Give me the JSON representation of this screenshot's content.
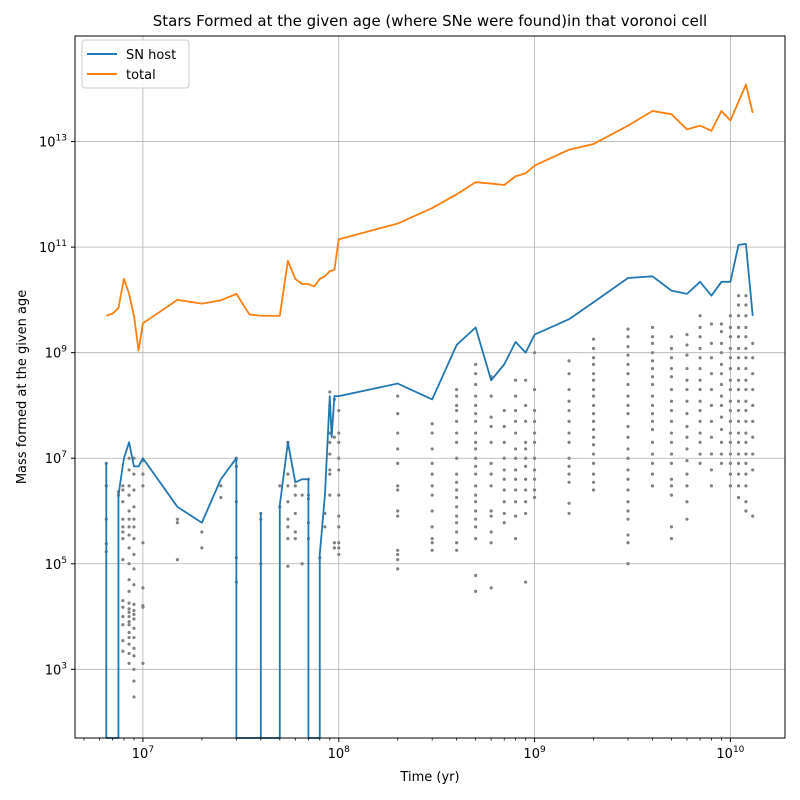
{
  "chart_data": {
    "type": "line",
    "title": "Stars Formed at the given age (where SNe were found)in that voronoi cell",
    "xlabel": "Time (yr)",
    "ylabel": "Mass formed at the given age",
    "xscale": "log",
    "yscale": "log",
    "xlim": [
      4500000,
      19000000000
    ],
    "ylim": [
      50,
      1000000000000000
    ],
    "grid": true,
    "legend_position": "top-left",
    "x_ticks": [
      {
        "value": 10000000,
        "base": "10",
        "exp": "7"
      },
      {
        "value": 100000000,
        "base": "10",
        "exp": "8"
      },
      {
        "value": 1000000000,
        "base": "10",
        "exp": "9"
      },
      {
        "value": 10000000000,
        "base": "10",
        "exp": "10"
      }
    ],
    "y_ticks": [
      {
        "value": 1000,
        "base": "10",
        "exp": "3"
      },
      {
        "value": 100000,
        "base": "10",
        "exp": "5"
      },
      {
        "value": 10000000,
        "base": "10",
        "exp": "7"
      },
      {
        "value": 1000000000,
        "base": "10",
        "exp": "9"
      },
      {
        "value": 100000000000,
        "base": "10",
        "exp": "11"
      },
      {
        "value": 10000000000000,
        "base": "10",
        "exp": "13"
      }
    ],
    "colors": {
      "sn_host": "#1f77b4",
      "total": "#ff7f0e",
      "scatter": "#808080",
      "grid": "#b0b0b0"
    },
    "series": [
      {
        "name": "SN host",
        "x": [
          6500000,
          6500000,
          6500000,
          7500000,
          7500000,
          8000000,
          8500000,
          9000000,
          9500000,
          10000000,
          15000000,
          20000000,
          25000000,
          30000000,
          30000000,
          30000000,
          40000000,
          40000000,
          40000000,
          50000000,
          50000000,
          55000000,
          60000000,
          65000000,
          70000000,
          70000000,
          70000000,
          80000000,
          80000000,
          85000000,
          90000000,
          92000000,
          95000000,
          100000000,
          200000000,
          300000000,
          400000000,
          500000000,
          600000000,
          700000000,
          800000000,
          900000000,
          1000000000,
          1500000000,
          2000000000,
          3000000000,
          4000000000,
          5000000000,
          6000000000,
          7000000000,
          8000000000,
          9000000000,
          10000000000,
          11000000000,
          12000000000,
          13000000000
        ],
        "y": [
          50,
          8000000,
          50,
          50,
          2000000,
          10000000,
          20000000,
          7000000,
          7000000,
          10000000,
          1200000,
          600000,
          4000000,
          10000000,
          50,
          50,
          50,
          900000,
          50,
          50,
          1300000,
          20000000,
          3500000,
          4000000,
          4000000,
          50,
          50,
          50,
          150000,
          2000000,
          150000000,
          25000000,
          150000000,
          150000000,
          260000000,
          130000000,
          1400000000,
          3000000000,
          300000000,
          600000000,
          1600000000,
          1000000000,
          2200000000,
          4300000000,
          9000000000,
          26000000000,
          28000000000,
          15000000000,
          13000000000,
          22000000000,
          12000000000,
          22000000000,
          22000000000,
          110000000000,
          115000000000,
          5000000000
        ]
      },
      {
        "name": "total",
        "x": [
          6500000,
          7000000,
          7500000,
          8000000,
          8500000,
          9000000,
          9500000,
          10000000,
          15000000,
          20000000,
          25000000,
          30000000,
          35000000,
          40000000,
          45000000,
          50000000,
          55000000,
          60000000,
          65000000,
          70000000,
          75000000,
          80000000,
          85000000,
          90000000,
          95000000,
          100000000,
          200000000,
          300000000,
          400000000,
          500000000,
          600000000,
          700000000,
          800000000,
          900000000,
          1000000000,
          1500000000,
          2000000000,
          3000000000,
          4000000000,
          5000000000,
          6000000000,
          7000000000,
          8000000000,
          9000000000,
          10000000000,
          12000000000,
          13000000000
        ],
        "y": [
          5000000000,
          5500000000,
          7000000000,
          25000000000,
          13000000000,
          5000000000,
          1100000000,
          3600000000,
          10000000000,
          8500000000,
          9800000000,
          13000000000,
          5300000000,
          5000000000,
          5000000000,
          5000000000,
          55000000000,
          25000000000,
          20000000000,
          20000000000,
          18000000000,
          25000000000,
          28000000000,
          35000000000,
          37000000000,
          140000000000,
          280000000000,
          550000000000,
          1000000000000,
          1700000000000,
          1600000000000,
          1500000000000,
          2200000000000,
          2500000000000,
          3500000000000,
          7000000000000,
          9000000000000,
          20000000000000,
          38000000000000,
          33000000000000,
          17000000000000,
          20000000000000,
          16000000000000,
          38000000000000,
          25000000000000,
          120000000000000,
          35000000000000
        ]
      }
    ],
    "scatter_columns": [
      {
        "x": 6500000,
        "y": [
          8000000,
          3000000,
          700000,
          240000,
          170000
        ]
      },
      {
        "x": 7500000,
        "y": [
          2300000,
          2000000
        ]
      },
      {
        "x": 7900000,
        "y": [
          3000000,
          2500000,
          1500000,
          700000,
          500000,
          400000,
          300000,
          120000,
          20000,
          15000,
          10000,
          7000,
          3500,
          2200
        ]
      },
      {
        "x": 8500000,
        "y": [
          10000000,
          6000000,
          3000000,
          2000000,
          1000000,
          700000,
          500000,
          350000,
          200000,
          100000,
          50000,
          30000,
          18000,
          14000,
          12000,
          10000,
          8000,
          7000,
          5000,
          4000,
          3000,
          2000,
          1300
        ]
      },
      {
        "x": 9000000,
        "y": [
          10000000,
          5000000,
          2500000,
          1200000,
          700000,
          500000,
          300000,
          150000,
          80000,
          40000,
          17000,
          13000,
          11000,
          9000,
          6000,
          4000,
          2500,
          1800,
          1000,
          600,
          300
        ]
      },
      {
        "x": 10000000,
        "y": [
          9000000,
          5000000,
          3000000,
          250000,
          35000,
          16000,
          15000,
          1300
        ]
      },
      {
        "x": 15000000,
        "y": [
          700000,
          600000,
          120000
        ]
      },
      {
        "x": 20000000,
        "y": [
          400000,
          200000
        ]
      },
      {
        "x": 25000000,
        "y": [
          3000000,
          1800000
        ]
      },
      {
        "x": 30000000,
        "y": [
          10000000,
          7000000,
          1500000,
          130000,
          45000
        ]
      },
      {
        "x": 40000000,
        "y": [
          900000,
          700000,
          100000
        ]
      },
      {
        "x": 50000000,
        "y": [
          3000000,
          1200000
        ]
      },
      {
        "x": 55000000,
        "y": [
          20000000,
          5000000,
          3000000,
          1500000,
          700000,
          500000,
          300000,
          90000
        ]
      },
      {
        "x": 60000000,
        "y": [
          3000000,
          2000000,
          900000,
          400000,
          300000
        ]
      },
      {
        "x": 65000000,
        "y": [
          2000000,
          100000
        ]
      },
      {
        "x": 70000000,
        "y": [
          4000000,
          2000000,
          1700000,
          600000,
          300000
        ]
      },
      {
        "x": 80000000,
        "y": [
          130000
        ]
      },
      {
        "x": 85000000,
        "y": [
          900000,
          500000
        ]
      },
      {
        "x": 90000000,
        "y": [
          180000000,
          100000000,
          30000000,
          20000000,
          12000000,
          6000000,
          5000000,
          2000000
        ]
      },
      {
        "x": 95000000,
        "y": [
          130000000,
          25000000,
          250000,
          200000
        ]
      },
      {
        "x": 100000000,
        "y": [
          80000000,
          30000000,
          20000000,
          10000000,
          6000000,
          2000000,
          800000,
          500000,
          250000,
          200000,
          150000
        ]
      },
      {
        "x": 200000000,
        "y": [
          150000000,
          70000000,
          30000000,
          15000000,
          8000000,
          3000000,
          2500000,
          1000000,
          800000,
          180000,
          150000,
          120000,
          80000
        ]
      },
      {
        "x": 300000000,
        "y": [
          45000000,
          30000000,
          15000000,
          8000000,
          5000000,
          3000000,
          2000000,
          1000000,
          500000,
          300000,
          250000,
          180000
        ]
      },
      {
        "x": 400000000,
        "y": [
          200000000,
          150000000,
          100000000,
          80000000,
          50000000,
          30000000,
          20000000,
          10000000,
          5000000,
          3500000,
          2500000,
          1800000,
          1200000,
          800000,
          600000,
          400000,
          250000,
          180000
        ]
      },
      {
        "x": 500000000,
        "y": [
          600000000,
          400000000,
          250000000,
          150000000,
          100000000,
          70000000,
          50000000,
          30000000,
          20000000,
          15000000,
          10000000,
          7000000,
          5000000,
          3000000,
          2000000,
          1500000,
          1000000,
          700000,
          500000,
          300000,
          60000,
          30000
        ]
      },
      {
        "x": 600000000,
        "y": [
          350000000,
          150000000,
          60000000,
          40000000,
          20000000,
          8000000,
          5000000,
          3000000,
          1000000,
          800000,
          400000,
          250000,
          35000
        ]
      },
      {
        "x": 700000000,
        "y": [
          80000000,
          40000000,
          20000000,
          10000000,
          6000000,
          4000000,
          2500000,
          1500000,
          900000,
          600000
        ]
      },
      {
        "x": 800000000,
        "y": [
          300000000,
          150000000,
          80000000,
          50000000,
          30000000,
          15000000,
          10000000,
          6000000,
          4000000,
          2500000,
          1500000,
          800000,
          300000
        ]
      },
      {
        "x": 900000000,
        "y": [
          300000000,
          100000000,
          50000000,
          20000000,
          15000000,
          10000000,
          7000000,
          4000000,
          2500000,
          1500000,
          900000,
          45000
        ]
      },
      {
        "x": 1000000000,
        "y": [
          1000000000,
          200000000,
          80000000,
          50000000,
          30000000,
          20000000,
          10000000,
          6000000,
          4000000,
          2500000,
          1800000
        ]
      },
      {
        "x": 1500000000,
        "y": [
          700000000,
          400000000,
          200000000,
          120000000,
          80000000,
          50000000,
          30000000,
          20000000,
          10000000,
          7000000,
          5000000,
          3500000,
          1400000,
          900000
        ]
      },
      {
        "x": 2000000000,
        "y": [
          1800000000,
          1200000000,
          800000000,
          600000000,
          400000000,
          300000000,
          200000000,
          150000000,
          100000000,
          70000000,
          50000000,
          35000000,
          25000000,
          18000000,
          12000000,
          8000000,
          5000000,
          3500000,
          2500000
        ]
      },
      {
        "x": 3000000000,
        "y": [
          2800000000,
          2000000000,
          1300000000,
          900000000,
          600000000,
          400000000,
          250000000,
          150000000,
          100000000,
          70000000,
          40000000,
          25000000,
          15000000,
          10000000,
          6000000,
          4000000,
          2500000,
          1500000,
          1000000,
          700000,
          350000,
          250000,
          100000
        ]
      },
      {
        "x": 4000000000,
        "y": [
          3000000000,
          2000000000,
          1500000000,
          1000000000,
          700000000,
          500000000,
          350000000,
          250000000,
          150000000,
          100000000,
          70000000,
          50000000,
          35000000,
          20000000,
          12000000,
          8000000,
          5000000,
          3000000
        ]
      },
      {
        "x": 5000000000,
        "y": [
          2000000000,
          1200000000,
          800000000,
          500000000,
          350000000,
          200000000,
          120000000,
          80000000,
          50000000,
          30000000,
          20000000,
          12000000,
          8000000,
          4000000,
          3000000,
          2000000,
          500000,
          300000
        ]
      },
      {
        "x": 6000000000,
        "y": [
          2200000000,
          1400000000,
          900000000,
          500000000,
          300000000,
          200000000,
          120000000,
          70000000,
          40000000,
          25000000,
          15000000,
          9000000,
          5000000,
          3000000,
          1500000,
          700000
        ]
      },
      {
        "x": 7000000000,
        "y": [
          5000000000,
          3000000000,
          2000000000,
          1200000000,
          800000000,
          500000000,
          300000000,
          200000000,
          120000000,
          80000000,
          50000000,
          30000000,
          20000000,
          12000000,
          8000000
        ]
      },
      {
        "x": 8000000000,
        "y": [
          3500000000,
          1500000000,
          800000000,
          400000000,
          200000000,
          100000000,
          50000000,
          25000000,
          12000000,
          6000000,
          3000000
        ]
      },
      {
        "x": 9000000000,
        "y": [
          3500000000,
          2500000000,
          1500000000,
          1000000000,
          600000000,
          400000000,
          250000000,
          150000000,
          100000000,
          60000000,
          35000000,
          20000000,
          12000000,
          8000000
        ]
      },
      {
        "x": 10000000000,
        "y": [
          5000000000,
          3000000000,
          2000000000,
          1200000000,
          800000000,
          500000000,
          300000000,
          200000000,
          120000000,
          80000000,
          50000000,
          30000000,
          20000000,
          12000000,
          8000000,
          5000000,
          3000000
        ]
      },
      {
        "x": 11000000000,
        "y": [
          12000000000,
          8000000000,
          5000000000,
          3000000000,
          2000000000,
          1200000000,
          800000000,
          500000000,
          300000000,
          200000000,
          120000000,
          80000000,
          50000000,
          30000000,
          20000000,
          12000000,
          8000000,
          5000000,
          3000000,
          1800000
        ]
      },
      {
        "x": 12000000000,
        "y": [
          12000000000,
          8000000000,
          5000000000,
          3000000000,
          2000000000,
          1200000000,
          800000000,
          500000000,
          300000000,
          200000000,
          120000000,
          80000000,
          50000000,
          30000000,
          20000000,
          12000000,
          8000000,
          5000000,
          3000000,
          1500000,
          1000000
        ]
      },
      {
        "x": 13000000000,
        "y": [
          1500000000,
          800000000,
          400000000,
          200000000,
          100000000,
          50000000,
          25000000,
          12000000,
          6000000,
          800000
        ]
      }
    ]
  }
}
